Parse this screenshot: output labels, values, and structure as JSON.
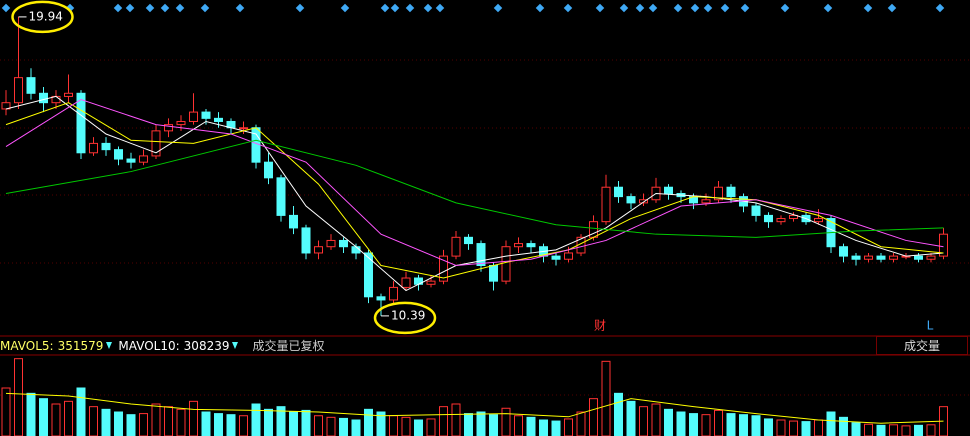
{
  "chart_data": {
    "type": "candlestick",
    "ohlc": [
      [
        17.0,
        17.6,
        16.8,
        17.2
      ],
      [
        17.2,
        19.94,
        17.0,
        18.0
      ],
      [
        18.0,
        18.3,
        17.3,
        17.5
      ],
      [
        17.5,
        17.7,
        16.9,
        17.2
      ],
      [
        17.2,
        17.6,
        17.0,
        17.4
      ],
      [
        17.4,
        18.1,
        17.2,
        17.5
      ],
      [
        17.5,
        17.6,
        15.4,
        15.6
      ],
      [
        15.6,
        16.1,
        15.5,
        15.9
      ],
      [
        15.9,
        16.1,
        15.5,
        15.7
      ],
      [
        15.7,
        15.8,
        15.2,
        15.4
      ],
      [
        15.4,
        15.6,
        15.1,
        15.3
      ],
      [
        15.3,
        15.7,
        15.2,
        15.5
      ],
      [
        15.5,
        16.5,
        15.4,
        16.3
      ],
      [
        16.3,
        16.7,
        16.1,
        16.5
      ],
      [
        16.5,
        16.8,
        16.3,
        16.6
      ],
      [
        16.6,
        17.5,
        16.5,
        16.9
      ],
      [
        16.9,
        17.0,
        16.5,
        16.7
      ],
      [
        16.7,
        16.9,
        16.4,
        16.6
      ],
      [
        16.6,
        16.7,
        16.2,
        16.4
      ],
      [
        16.4,
        16.6,
        16.2,
        16.4
      ],
      [
        16.4,
        16.5,
        15.1,
        15.3
      ],
      [
        15.3,
        15.6,
        14.6,
        14.8
      ],
      [
        14.8,
        14.9,
        13.4,
        13.6
      ],
      [
        13.6,
        13.9,
        13.0,
        13.2
      ],
      [
        13.2,
        13.3,
        12.2,
        12.4
      ],
      [
        12.4,
        12.8,
        12.2,
        12.6
      ],
      [
        12.6,
        13.0,
        12.5,
        12.8
      ],
      [
        12.8,
        12.9,
        12.4,
        12.6
      ],
      [
        12.6,
        12.7,
        12.2,
        12.4
      ],
      [
        12.4,
        12.5,
        10.8,
        11.0
      ],
      [
        11.0,
        11.1,
        10.39,
        10.9
      ],
      [
        10.9,
        11.5,
        10.8,
        11.3
      ],
      [
        11.3,
        11.8,
        11.2,
        11.6
      ],
      [
        11.6,
        11.7,
        11.2,
        11.4
      ],
      [
        11.4,
        11.7,
        11.3,
        11.5
      ],
      [
        11.5,
        12.5,
        11.4,
        12.3
      ],
      [
        12.3,
        13.1,
        12.2,
        12.9
      ],
      [
        12.9,
        13.0,
        12.5,
        12.7
      ],
      [
        12.7,
        12.8,
        11.8,
        12.0
      ],
      [
        12.0,
        12.1,
        11.2,
        11.5
      ],
      [
        11.5,
        12.8,
        11.4,
        12.6
      ],
      [
        12.6,
        12.9,
        12.4,
        12.7
      ],
      [
        12.7,
        12.8,
        12.4,
        12.6
      ],
      [
        12.6,
        12.7,
        12.1,
        12.3
      ],
      [
        12.3,
        12.4,
        12.0,
        12.2
      ],
      [
        12.2,
        12.6,
        12.1,
        12.4
      ],
      [
        12.4,
        13.0,
        12.3,
        12.9
      ],
      [
        12.9,
        13.6,
        12.8,
        13.4
      ],
      [
        13.4,
        14.9,
        13.3,
        14.5
      ],
      [
        14.5,
        14.7,
        14.0,
        14.2
      ],
      [
        14.2,
        14.3,
        13.8,
        14.0
      ],
      [
        14.0,
        14.3,
        13.9,
        14.1
      ],
      [
        14.1,
        14.8,
        14.0,
        14.5
      ],
      [
        14.5,
        14.6,
        14.1,
        14.3
      ],
      [
        14.3,
        14.4,
        14.0,
        14.2
      ],
      [
        14.2,
        14.3,
        13.8,
        14.0
      ],
      [
        14.0,
        14.3,
        13.9,
        14.1
      ],
      [
        14.1,
        14.7,
        14.0,
        14.5
      ],
      [
        14.5,
        14.6,
        14.0,
        14.2
      ],
      [
        14.2,
        14.3,
        13.7,
        13.9
      ],
      [
        13.9,
        14.0,
        13.4,
        13.6
      ],
      [
        13.6,
        13.7,
        13.2,
        13.4
      ],
      [
        13.4,
        13.6,
        13.3,
        13.5
      ],
      [
        13.5,
        13.7,
        13.4,
        13.6
      ],
      [
        13.6,
        13.7,
        13.3,
        13.4
      ],
      [
        13.4,
        13.8,
        13.3,
        13.5
      ],
      [
        13.5,
        13.6,
        12.4,
        12.6
      ],
      [
        12.6,
        12.7,
        12.1,
        12.3
      ],
      [
        12.3,
        12.4,
        12.0,
        12.2
      ],
      [
        12.2,
        12.4,
        12.1,
        12.3
      ],
      [
        12.3,
        12.4,
        12.1,
        12.2
      ],
      [
        12.2,
        12.4,
        12.1,
        12.3
      ],
      [
        12.3,
        12.4,
        12.2,
        12.3
      ],
      [
        12.3,
        12.4,
        12.1,
        12.2
      ],
      [
        12.2,
        12.4,
        12.1,
        12.3
      ],
      [
        12.3,
        13.2,
        12.2,
        13.0
      ]
    ],
    "volume": [
      900000,
      1450000,
      800000,
      700000,
      600000,
      650000,
      900000,
      550000,
      500000,
      450000,
      400000,
      420000,
      600000,
      550000,
      500000,
      650000,
      450000,
      420000,
      400000,
      380000,
      600000,
      500000,
      550000,
      450000,
      480000,
      380000,
      350000,
      330000,
      300000,
      500000,
      450000,
      380000,
      350000,
      300000,
      320000,
      550000,
      600000,
      420000,
      450000,
      400000,
      520000,
      380000,
      350000,
      300000,
      280000,
      320000,
      450000,
      700000,
      1400000,
      800000,
      650000,
      550000,
      600000,
      500000,
      450000,
      420000,
      400000,
      480000,
      420000,
      400000,
      380000,
      320000,
      300000,
      280000,
      270000,
      300000,
      450000,
      350000,
      250000,
      220000,
      200000,
      210000,
      190000,
      200000,
      210000,
      550000
    ],
    "ylim": [
      9.78,
      20.48
    ],
    "vol_ylim": [
      0,
      1500000
    ],
    "up_color": "#ff3232",
    "down_color": "#54fcfc",
    "ma_lines": [
      {
        "color": "#ffffff",
        "x": [
          0,
          4,
          8,
          12,
          16,
          20,
          24,
          28,
          32,
          36,
          40,
          44,
          48,
          52,
          56,
          60,
          64,
          68,
          72,
          75
        ],
        "values": [
          17.0,
          17.4,
          16.2,
          15.6,
          16.6,
          16.2,
          13.9,
          12.6,
          11.2,
          12.0,
          12.3,
          12.5,
          13.2,
          14.3,
          14.2,
          14.0,
          13.5,
          12.8,
          12.3,
          12.4
        ]
      },
      {
        "color": "#ffff00",
        "x": [
          0,
          5,
          10,
          15,
          20,
          25,
          30,
          35,
          40,
          45,
          50,
          55,
          60,
          65,
          70,
          75
        ],
        "values": [
          16.5,
          17.2,
          16.0,
          15.9,
          16.4,
          14.6,
          12.0,
          11.6,
          12.1,
          12.5,
          13.5,
          14.2,
          14.1,
          13.6,
          12.6,
          12.4
        ]
      },
      {
        "color": "#ff55ff",
        "x": [
          0,
          6,
          12,
          18,
          24,
          30,
          36,
          42,
          48,
          54,
          60,
          66,
          72,
          75
        ],
        "values": [
          15.8,
          17.3,
          16.5,
          16.2,
          15.3,
          13.0,
          12.0,
          12.2,
          12.8,
          13.9,
          14.1,
          13.6,
          12.8,
          12.6
        ]
      },
      {
        "color": "#00c800",
        "x": [
          0,
          10,
          20,
          28,
          36,
          44,
          52,
          60,
          68,
          75
        ],
        "values": [
          14.3,
          15.0,
          16.0,
          15.2,
          14.0,
          13.3,
          13.0,
          12.9,
          13.1,
          13.2
        ]
      }
    ],
    "vol_ma": {
      "color": "#ffff00",
      "x": [
        0,
        5,
        10,
        15,
        20,
        25,
        30,
        35,
        40,
        45,
        50,
        55,
        60,
        65,
        70,
        75
      ],
      "values": [
        800000,
        750000,
        600000,
        500000,
        480000,
        450000,
        380000,
        400000,
        420000,
        360000,
        700000,
        550000,
        420000,
        300000,
        240000,
        280000
      ]
    },
    "mavol": [
      {
        "label": "MAVOL5:",
        "value": 351579,
        "color": "#ffff66"
      },
      {
        "label": "MAVOL10:",
        "value": 308239,
        "color": "#ffffff"
      }
    ],
    "volume_note": "成交量已复权",
    "indicator_button": "成交量",
    "marker_fin": "财",
    "marker_l": "L"
  }
}
